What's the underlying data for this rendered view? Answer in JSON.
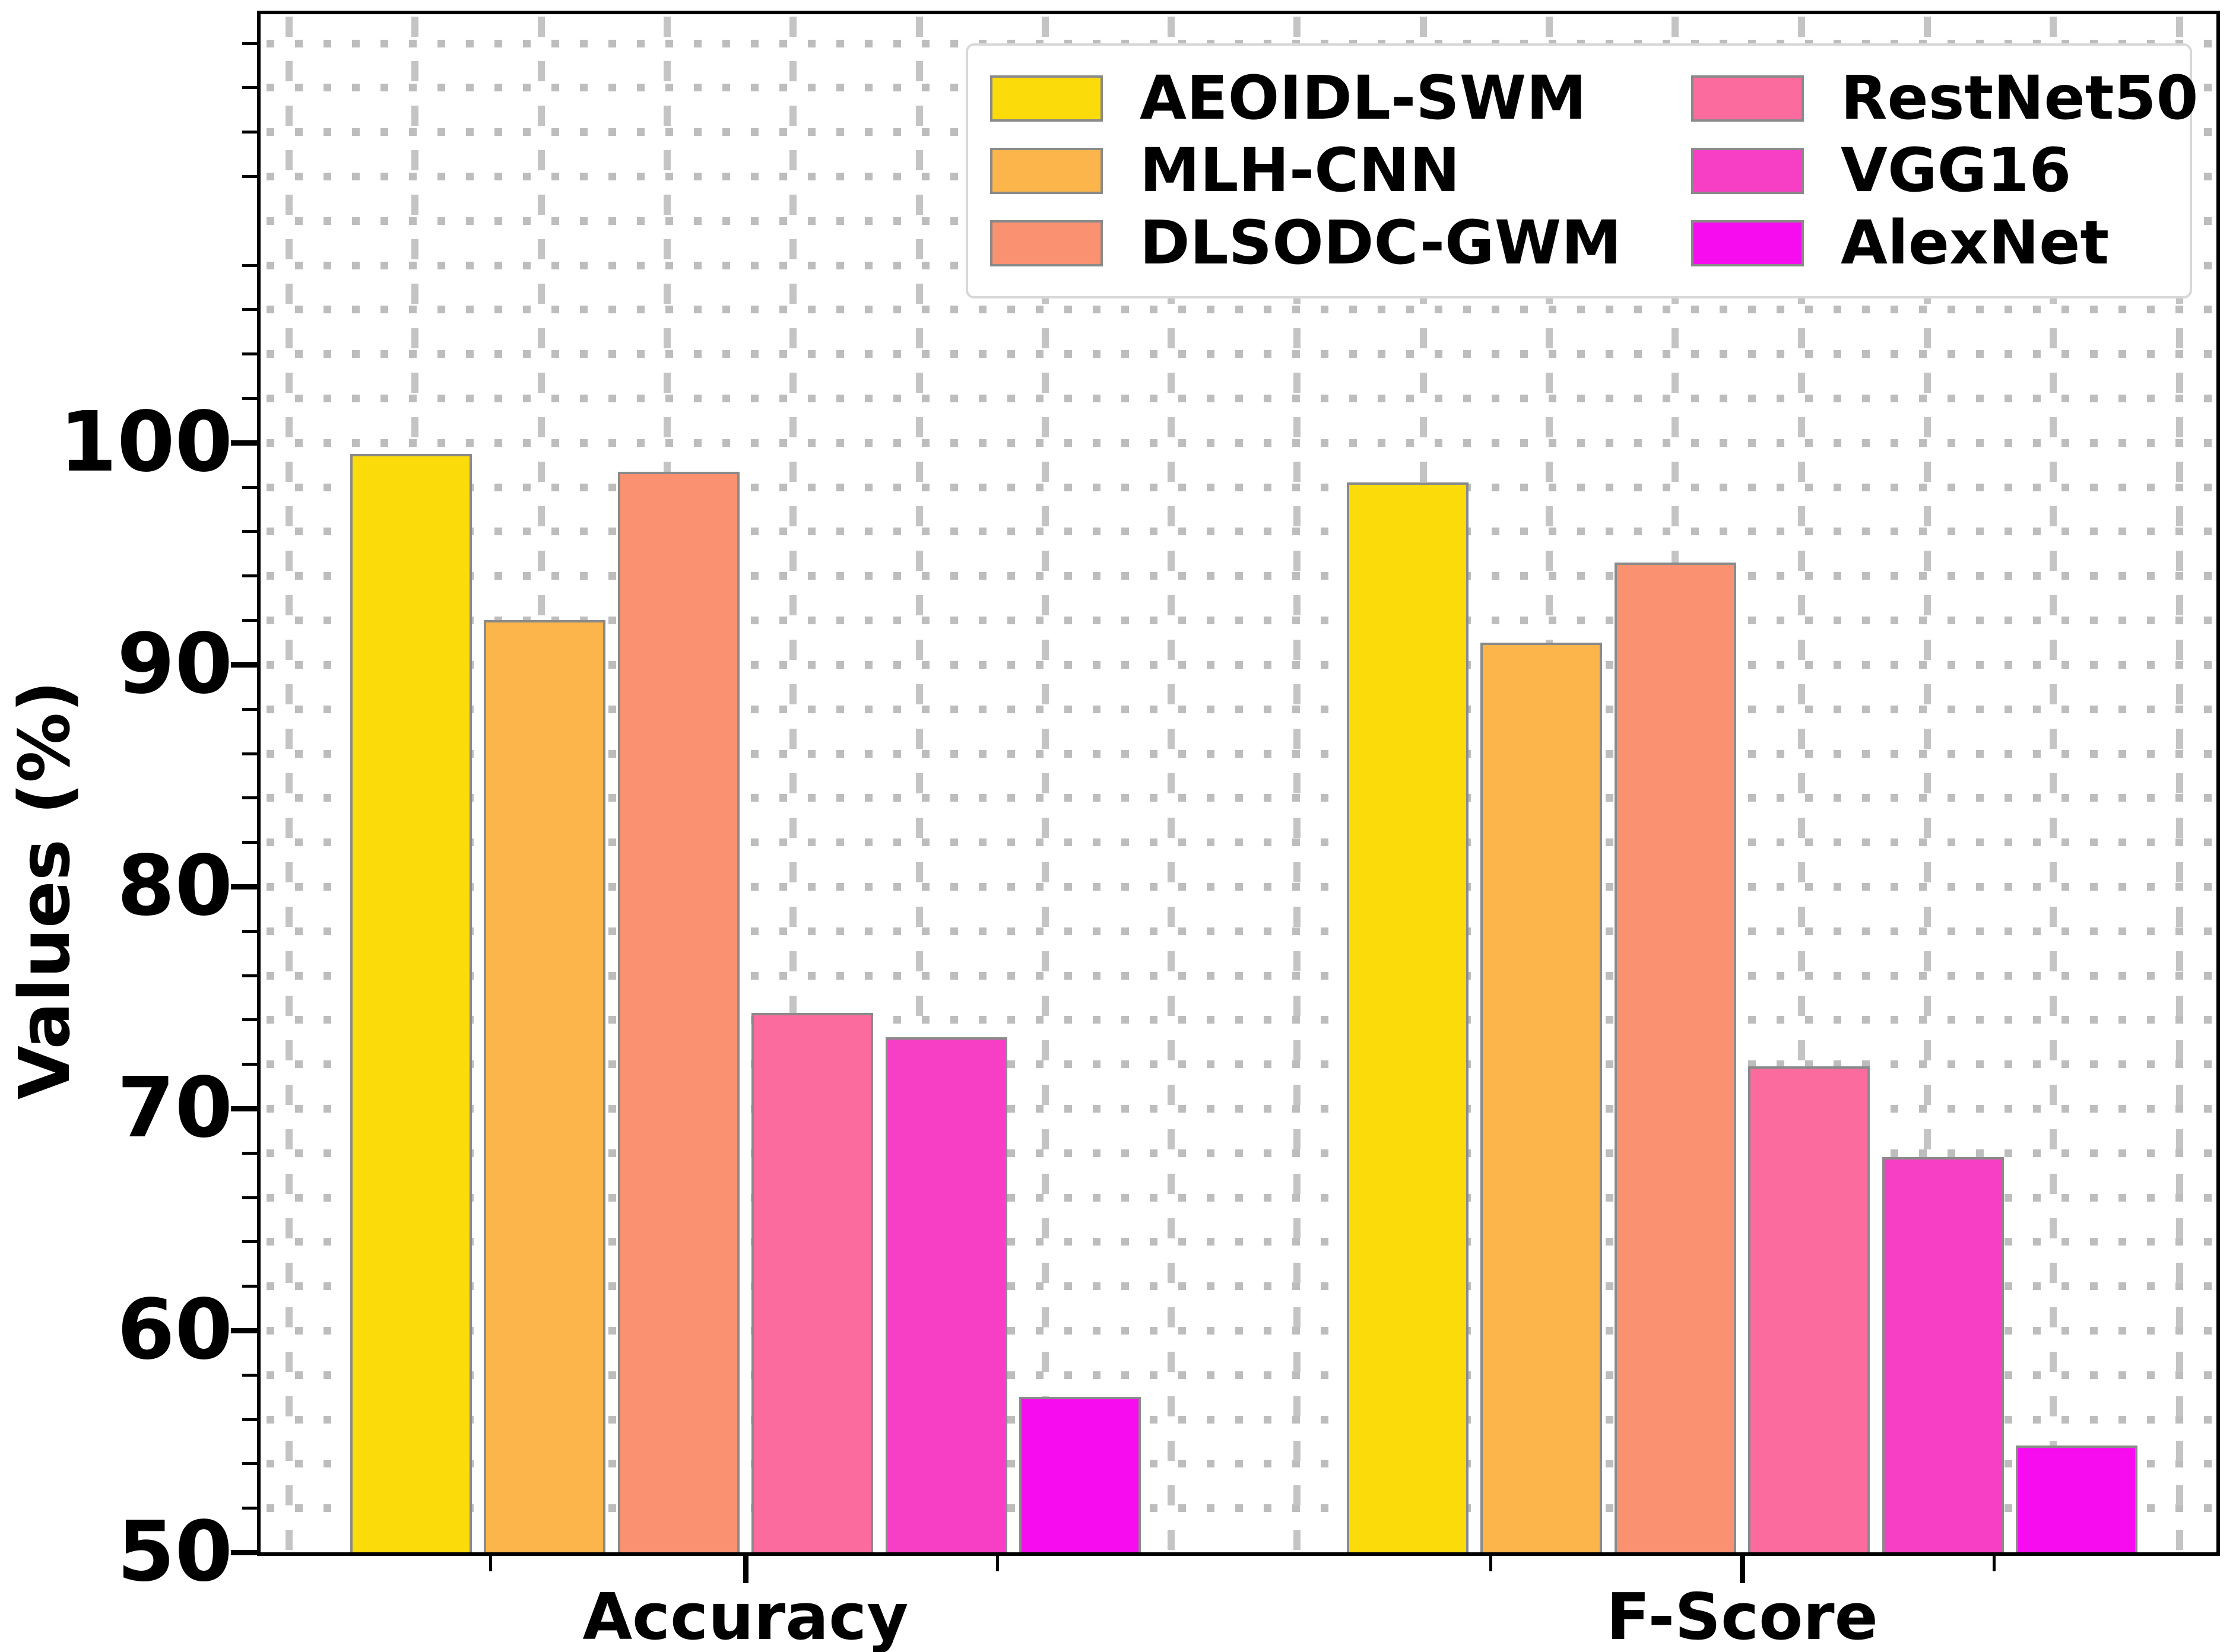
{
  "figure": {
    "background": "#ffffff",
    "title": ""
  },
  "axes": {
    "ylabel": "Values (%)",
    "y_tick_labels": [
      50,
      60,
      70,
      80,
      90,
      100
    ],
    "y_minor_step": 2,
    "grid_color": "#bdbdbd",
    "spine_color": "#000000",
    "tick_label_color": "#000000"
  },
  "chart_data": {
    "type": "bar",
    "categories": [
      "Accuracy",
      "F-Score"
    ],
    "series": [
      {
        "name": "AEOIDL-SWM",
        "color": "#FBDB09",
        "values": [
          99.5,
          98.2
        ]
      },
      {
        "name": "MLH-CNN",
        "color": "#FBB54A",
        "values": [
          92.0,
          91.0
        ]
      },
      {
        "name": "DLSODC-GWM",
        "color": "#FA9171",
        "values": [
          98.7,
          94.6
        ]
      },
      {
        "name": "RestNet50",
        "color": "#FB6B9D",
        "values": [
          74.3,
          71.9
        ]
      },
      {
        "name": "VGG16",
        "color": "#F73FC6",
        "values": [
          73.2,
          67.8
        ]
      },
      {
        "name": "AlexNet",
        "color": "#F70BEF",
        "values": [
          57.0,
          54.8
        ]
      }
    ],
    "title": "",
    "xlabel": "",
    "ylabel": "Values (%)",
    "ylim": [
      50,
      119.3
    ],
    "bar_edge_color": "#8a8a8a",
    "grid": true,
    "legend_position": "upper right"
  }
}
